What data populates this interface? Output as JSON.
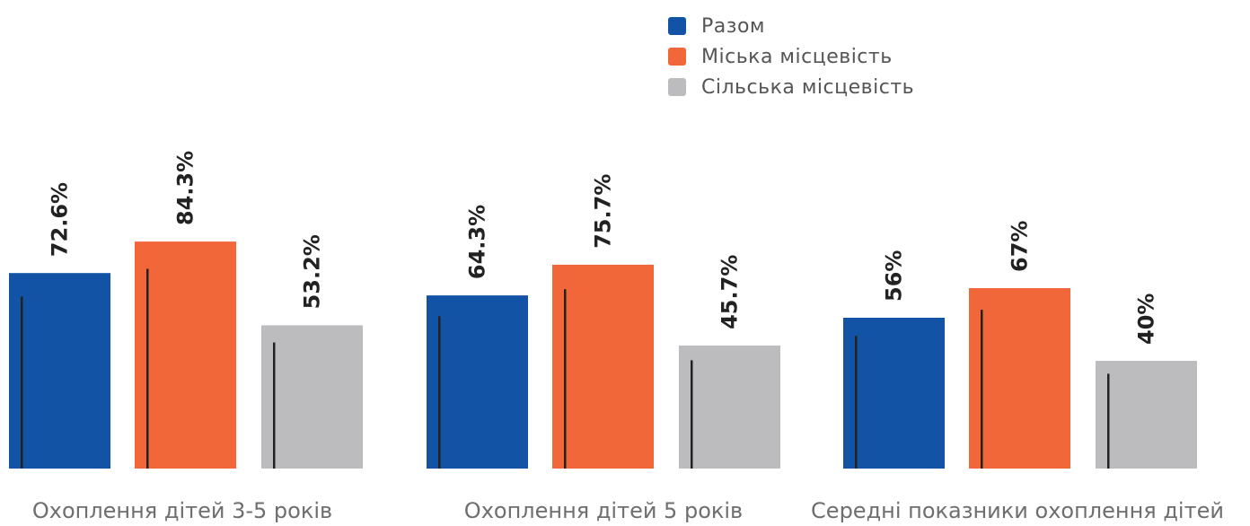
{
  "chart_data": {
    "type": "bar",
    "categories": [
      "Охоплення дітей 3-5 років",
      "Охоплення дітей 5 років",
      "Середні показники охоплення дітей"
    ],
    "series": [
      {
        "name": "Разом",
        "values": [
          72.6,
          64.3,
          56
        ],
        "labels": [
          "72.6%",
          "64.3%",
          "56%"
        ],
        "color": "#1353a6"
      },
      {
        "name": "Міська місцевість",
        "values": [
          84.3,
          75.7,
          67
        ],
        "labels": [
          "84.3%",
          "75.7%",
          "67%"
        ],
        "color": "#f26739"
      },
      {
        "name": "Сільська місцевість",
        "values": [
          53.2,
          45.7,
          40
        ],
        "labels": [
          "53.2%",
          "45.7%",
          "40%"
        ],
        "color": "#bcbcbe"
      }
    ],
    "ylim": [
      0,
      100
    ],
    "legend_position": "top-right",
    "grid": false,
    "marker_color": "#222222"
  }
}
